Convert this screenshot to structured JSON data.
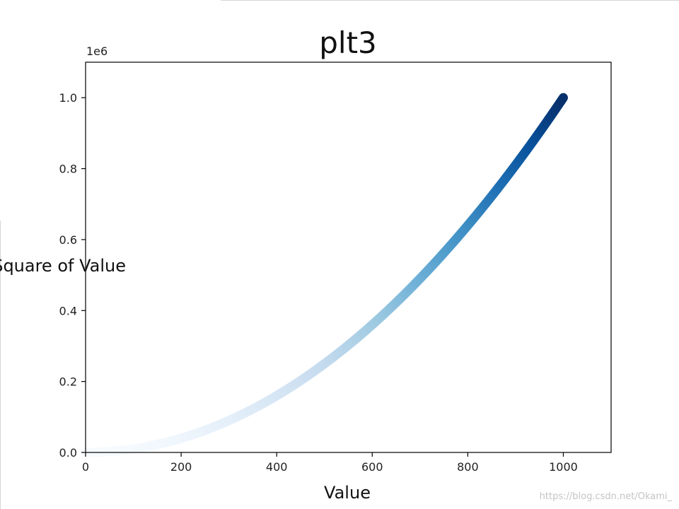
{
  "chart_data": {
    "type": "scatter",
    "title": "plt3",
    "xlabel": "Value",
    "ylabel": "Square of Value",
    "y_offset_label": "1e6",
    "x_domain": [
      0,
      1100
    ],
    "y_domain": [
      0,
      1100000
    ],
    "xticks": [
      0,
      200,
      400,
      600,
      800,
      1000
    ],
    "xtick_labels": [
      "0",
      "200",
      "400",
      "600",
      "800",
      "1000"
    ],
    "yticks": [
      0,
      200000,
      400000,
      600000,
      800000,
      1000000
    ],
    "ytick_labels": [
      "0.0",
      "0.2",
      "0.4",
      "0.6",
      "0.8",
      "1.0"
    ],
    "series": [
      {
        "x_range": [
          1,
          1000
        ],
        "function": "y = x^2",
        "colormap": "Blues"
      }
    ],
    "grid": false
  },
  "watermark": "https://blog.csdn.net/Okami_"
}
